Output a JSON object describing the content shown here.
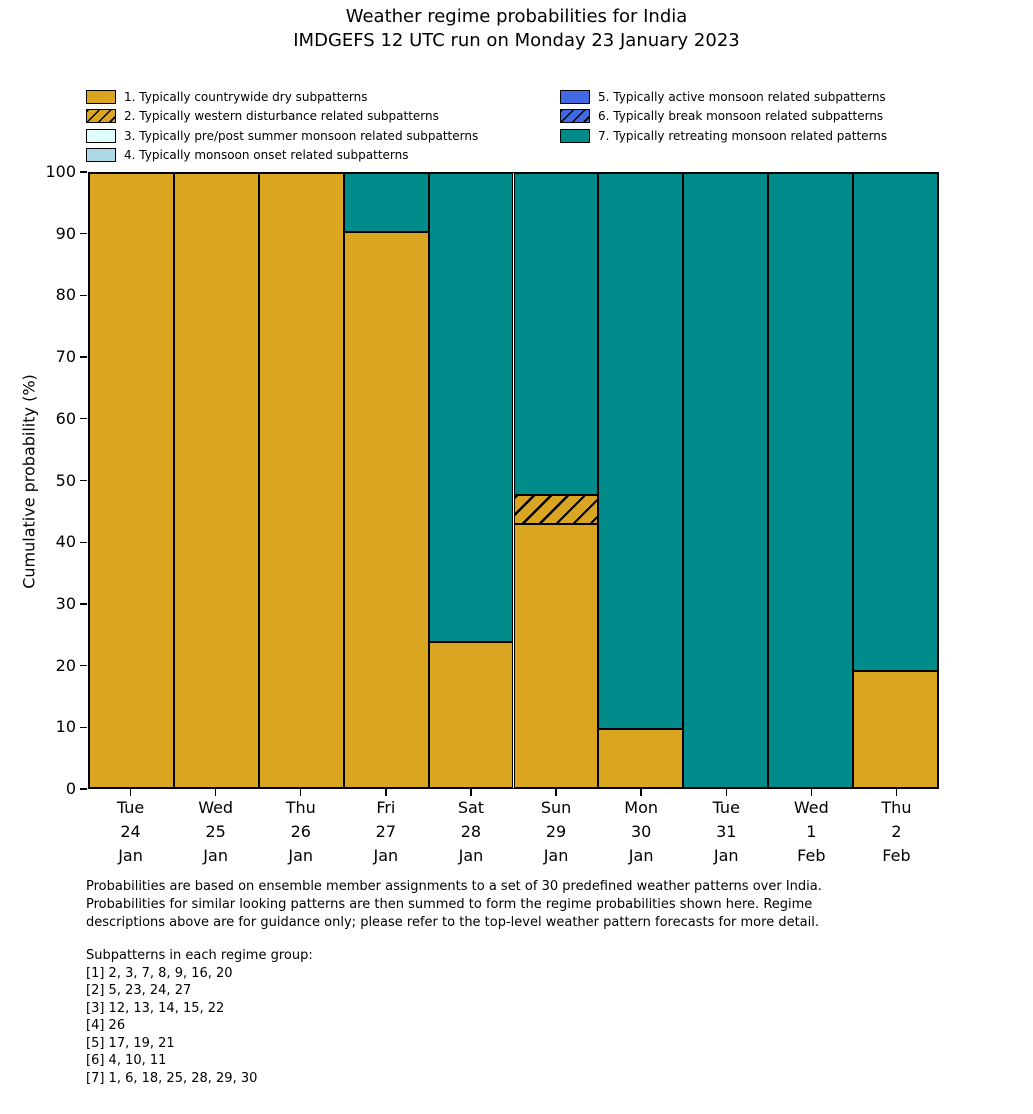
{
  "title": {
    "line1": "Weather regime probabilities for India",
    "line2": "IMDGEFS 12 UTC run on Monday 23 January 2023"
  },
  "colors": {
    "dry_gold": "#DAA520",
    "pre_post_summer_lightcyan": "#E0FFFF",
    "monsoon_onset_lightblue": "#ADD8E6",
    "active_monsoon_blue": "#4169E1",
    "retreating_teal": "#008B8B",
    "edge": "#000000"
  },
  "legend": {
    "left_column": [
      {
        "label": "1. Typically countrywide dry subpatterns",
        "color": "#DAA520",
        "hatch": false
      },
      {
        "label": "2. Typically western disturbance related subpatterns",
        "color": "#DAA520",
        "hatch": true
      },
      {
        "label": "3. Typically pre/post summer monsoon related subpatterns",
        "color": "#E0FFFF",
        "hatch": false
      },
      {
        "label": "4. Typically monsoon onset related subpatterns",
        "color": "#ADD8E6",
        "hatch": false
      }
    ],
    "right_column": [
      {
        "label": "5. Typically active monsoon related subpatterns",
        "color": "#4169E1",
        "hatch": false
      },
      {
        "label": "6. Typically break monsoon related subpatterns",
        "color": "#4169E1",
        "hatch": true
      },
      {
        "label": "7. Typically retreating monsoon related patterns",
        "color": "#008B8B",
        "hatch": false
      }
    ]
  },
  "chart_data": {
    "type": "bar",
    "stacked": true,
    "title": "Weather regime probabilities for India",
    "subtitle": "IMDGEFS 12 UTC run on Monday 23 January 2023",
    "xlabel": "",
    "ylabel": "Cumulative probability (%)",
    "ylim": [
      0,
      100
    ],
    "y_ticks": [
      0,
      10,
      20,
      30,
      40,
      50,
      60,
      70,
      80,
      90,
      100
    ],
    "grid": false,
    "legend_position": "above plot, two columns",
    "categories": [
      "Tue\n24\nJan",
      "Wed\n25\nJan",
      "Thu\n26\nJan",
      "Fri\n27\nJan",
      "Sat\n28\nJan",
      "Sun\n29\nJan",
      "Mon\n30\nJan",
      "Tue\n31\nJan",
      "Wed\n1\nFeb",
      "Thu\n2\nFeb"
    ],
    "series": [
      {
        "name": "1. Typically countrywide dry subpatterns",
        "color": "#DAA520",
        "hatch": false,
        "values": [
          100,
          100,
          100,
          90.48,
          23.81,
          42.86,
          9.52,
          0,
          0,
          19.05
        ]
      },
      {
        "name": "2. Typically western disturbance related subpatterns",
        "color": "#DAA520",
        "hatch": true,
        "values": [
          0,
          0,
          0,
          0,
          0,
          4.76,
          0,
          0,
          0,
          0
        ]
      },
      {
        "name": "3. Typically pre/post summer monsoon related subpatterns",
        "color": "#E0FFFF",
        "hatch": false,
        "values": [
          0,
          0,
          0,
          0,
          0,
          0,
          0,
          0,
          0,
          0
        ]
      },
      {
        "name": "4. Typically monsoon onset related subpatterns",
        "color": "#ADD8E6",
        "hatch": false,
        "values": [
          0,
          0,
          0,
          0,
          0,
          0,
          0,
          0,
          0,
          0
        ]
      },
      {
        "name": "5. Typically active monsoon related subpatterns",
        "color": "#4169E1",
        "hatch": false,
        "values": [
          0,
          0,
          0,
          0,
          0,
          0,
          0,
          0,
          0,
          0
        ]
      },
      {
        "name": "6. Typically break monsoon related subpatterns",
        "color": "#4169E1",
        "hatch": true,
        "values": [
          0,
          0,
          0,
          0,
          0,
          0,
          0,
          0,
          0,
          0
        ]
      },
      {
        "name": "7. Typically retreating monsoon related patterns",
        "color": "#008B8B",
        "hatch": false,
        "values": [
          0,
          0,
          0,
          9.52,
          76.19,
          52.38,
          90.48,
          100,
          100,
          80.95
        ]
      }
    ]
  },
  "footer": {
    "note": "Probabilities are based on ensemble member assignments to a set of 30 predefined weather patterns over India.\nProbabilities for similar looking patterns are then summed to form the regime probabilities shown here. Regime\ndescriptions above are for guidance only; please refer to the top-level weather pattern forecasts for more detail.",
    "subpatterns_title": "Subpatterns in each regime group:",
    "subpatterns": "[1] 2, 3, 7, 8, 9, 16, 20\n[2] 5, 23, 24, 27\n[3] 12, 13, 14, 15, 22\n[4] 26\n[5] 17, 19, 21\n[6] 4, 10, 11\n[7] 1, 6, 18, 25, 28, 29, 30"
  }
}
